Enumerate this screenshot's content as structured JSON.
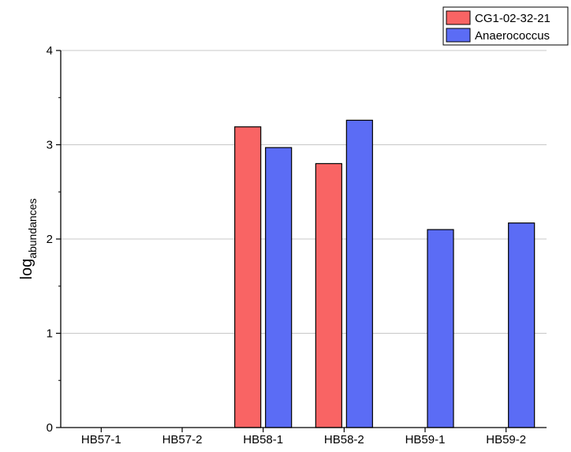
{
  "chart_data": {
    "type": "bar",
    "title": "",
    "xlabel": "",
    "ylabel": "log",
    "ylabel_subscript": "abundances",
    "categories": [
      "HB57-1",
      "HB57-2",
      "HB58-1",
      "HB58-2",
      "HB59-1",
      "HB59-2"
    ],
    "series": [
      {
        "name": "CG1-02-32-21",
        "color": "#f96464",
        "values": [
          0,
          0,
          3.19,
          2.8,
          0,
          0
        ]
      },
      {
        "name": "Anaerococcus",
        "color": "#5b6cf5",
        "values": [
          0,
          0,
          2.97,
          3.26,
          2.1,
          2.17
        ]
      }
    ],
    "ylim": [
      0,
      4
    ],
    "yticks": [
      "0",
      "1",
      "2",
      "3",
      "4"
    ],
    "grid": true,
    "legend_position": "top-right"
  }
}
